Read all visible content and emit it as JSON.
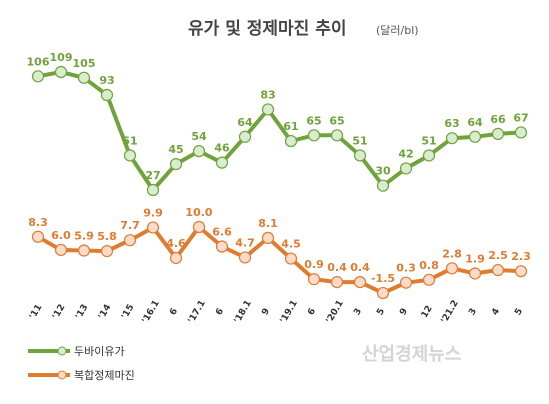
{
  "chart_data": {
    "type": "line",
    "title": "유가 및 정제마진 추이",
    "unit": "(달러/bl)",
    "categories": [
      "'11",
      "'12",
      "'13",
      "'14",
      "'15",
      "'16.1",
      "6",
      "'17.1",
      "6",
      "'18.1",
      "9",
      "'19.1",
      "6",
      "'20.1",
      "3",
      "5",
      "9",
      "12",
      "'21.2",
      "3",
      "4",
      "5"
    ],
    "series": [
      {
        "name": "두바이유가",
        "color": "#70a33a",
        "marker_fill": "#d8ecd0",
        "values": [
          106,
          109,
          105,
          93,
          51,
          27,
          45,
          54,
          46,
          64,
          83,
          61,
          65,
          65,
          51,
          30,
          42,
          51,
          63,
          64,
          66,
          67
        ]
      },
      {
        "name": "복합정제마진",
        "color": "#e07b30",
        "marker_fill": "#fbdccb",
        "values": [
          8.3,
          6.0,
          5.9,
          5.8,
          7.7,
          9.9,
          4.6,
          10.0,
          6.6,
          4.7,
          8.1,
          4.5,
          0.9,
          0.4,
          0.4,
          -1.5,
          0.3,
          0.8,
          2.8,
          1.9,
          2.5,
          2.3
        ]
      }
    ],
    "grid": false,
    "legend_position": "bottom-left",
    "watermark": "산업경제뉴스"
  }
}
